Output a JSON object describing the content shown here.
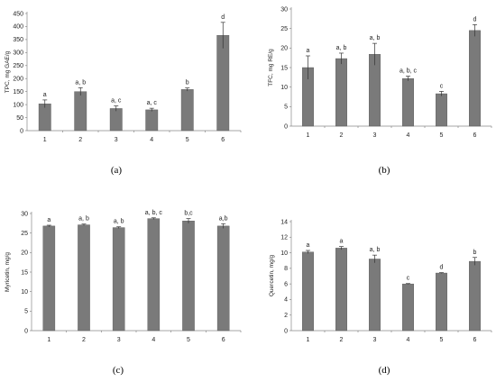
{
  "colors": {
    "bar": "#7a7a7a",
    "axis": "#888888",
    "background": "#ffffff"
  },
  "chart_data": [
    {
      "panel_label": "(a)",
      "type": "bar",
      "title": "",
      "xlabel": "",
      "ylabel": "TPC, mg GAE/g",
      "ylim": [
        0,
        450
      ],
      "yticks": [
        0,
        50,
        100,
        150,
        200,
        250,
        300,
        350,
        400,
        450
      ],
      "categories": [
        "1",
        "2",
        "3",
        "4",
        "5",
        "6"
      ],
      "values": [
        103,
        150,
        85,
        80,
        158,
        366
      ],
      "errors": [
        15,
        15,
        10,
        6,
        6,
        50
      ],
      "significance": [
        "a",
        "a, b",
        "a, c",
        "a, c",
        "b",
        "d"
      ],
      "grid": false
    },
    {
      "panel_label": "(b)",
      "type": "bar",
      "title": "",
      "xlabel": "",
      "ylabel": "TFC, mg RE/g",
      "ylim": [
        0,
        30
      ],
      "yticks": [
        0,
        5,
        10,
        15,
        20,
        25,
        30
      ],
      "categories": [
        "1",
        "2",
        "3",
        "4",
        "5",
        "6"
      ],
      "values": [
        15,
        17.3,
        18.4,
        12.2,
        8.3,
        24.5
      ],
      "errors": [
        3,
        1.4,
        2.8,
        0.6,
        0.6,
        1.5
      ],
      "significance": [
        "a",
        "a, b",
        "a, b",
        "a, b, c",
        "c",
        "d"
      ],
      "grid": false
    },
    {
      "panel_label": "(c)",
      "type": "bar",
      "title": "",
      "xlabel": "",
      "ylabel": "Myricetin, mg/g",
      "ylim": [
        0,
        30
      ],
      "yticks": [
        0,
        5,
        10,
        15,
        20,
        25,
        30
      ],
      "categories": [
        "1",
        "2",
        "3",
        "4",
        "5",
        "6"
      ],
      "values": [
        26.8,
        27.1,
        26.4,
        28.7,
        28.1,
        26.8
      ],
      "errors": [
        0.2,
        0.2,
        0.2,
        0.2,
        0.6,
        0.6
      ],
      "significance": [
        "a",
        "a, b",
        "a, b",
        "a, b, c",
        "b,c",
        "a,b"
      ],
      "grid": false
    },
    {
      "panel_label": "(d)",
      "type": "bar",
      "title": "",
      "xlabel": "",
      "ylabel": "Quercetin, mg/g",
      "ylim": [
        0,
        14
      ],
      "yticks": [
        0,
        2,
        4,
        6,
        8,
        10,
        12,
        14
      ],
      "categories": [
        "1",
        "2",
        "3",
        "4",
        "5",
        "6"
      ],
      "values": [
        10.1,
        10.6,
        9.2,
        6.0,
        7.4,
        8.9
      ],
      "errors": [
        0.2,
        0.2,
        0.5,
        0.05,
        0.05,
        0.5
      ],
      "significance": [
        "a",
        "a",
        "a, b",
        "c",
        "d",
        "b"
      ],
      "grid": false
    }
  ]
}
